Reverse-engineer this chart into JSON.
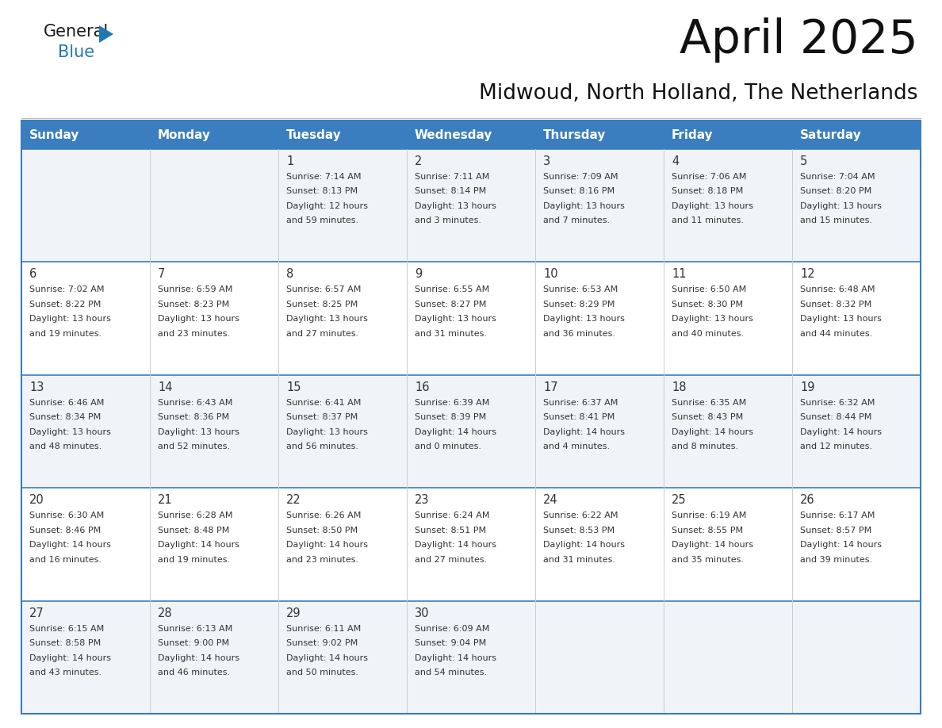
{
  "title": "April 2025",
  "subtitle": "Midwoud, North Holland, The Netherlands",
  "days_of_week": [
    "Sunday",
    "Monday",
    "Tuesday",
    "Wednesday",
    "Thursday",
    "Friday",
    "Saturday"
  ],
  "header_bg": "#3a7ebf",
  "header_text": "#ffffff",
  "cell_bg_light": "#f0f4f8",
  "cell_bg_white": "#ffffff",
  "border_color": "#3a7ebf",
  "row_line_color": "#3a7ebf",
  "col_line_color": "#cccccc",
  "text_color": "#333333",
  "logo_general_color": "#1a1a1a",
  "logo_blue_color": "#2278b5",
  "logo_triangle_color": "#2278b5",
  "weeks": [
    {
      "days": [
        {
          "date": "",
          "info": ""
        },
        {
          "date": "",
          "info": ""
        },
        {
          "date": "1",
          "info": "Sunrise: 7:14 AM\nSunset: 8:13 PM\nDaylight: 12 hours\nand 59 minutes."
        },
        {
          "date": "2",
          "info": "Sunrise: 7:11 AM\nSunset: 8:14 PM\nDaylight: 13 hours\nand 3 minutes."
        },
        {
          "date": "3",
          "info": "Sunrise: 7:09 AM\nSunset: 8:16 PM\nDaylight: 13 hours\nand 7 minutes."
        },
        {
          "date": "4",
          "info": "Sunrise: 7:06 AM\nSunset: 8:18 PM\nDaylight: 13 hours\nand 11 minutes."
        },
        {
          "date": "5",
          "info": "Sunrise: 7:04 AM\nSunset: 8:20 PM\nDaylight: 13 hours\nand 15 minutes."
        }
      ]
    },
    {
      "days": [
        {
          "date": "6",
          "info": "Sunrise: 7:02 AM\nSunset: 8:22 PM\nDaylight: 13 hours\nand 19 minutes."
        },
        {
          "date": "7",
          "info": "Sunrise: 6:59 AM\nSunset: 8:23 PM\nDaylight: 13 hours\nand 23 minutes."
        },
        {
          "date": "8",
          "info": "Sunrise: 6:57 AM\nSunset: 8:25 PM\nDaylight: 13 hours\nand 27 minutes."
        },
        {
          "date": "9",
          "info": "Sunrise: 6:55 AM\nSunset: 8:27 PM\nDaylight: 13 hours\nand 31 minutes."
        },
        {
          "date": "10",
          "info": "Sunrise: 6:53 AM\nSunset: 8:29 PM\nDaylight: 13 hours\nand 36 minutes."
        },
        {
          "date": "11",
          "info": "Sunrise: 6:50 AM\nSunset: 8:30 PM\nDaylight: 13 hours\nand 40 minutes."
        },
        {
          "date": "12",
          "info": "Sunrise: 6:48 AM\nSunset: 8:32 PM\nDaylight: 13 hours\nand 44 minutes."
        }
      ]
    },
    {
      "days": [
        {
          "date": "13",
          "info": "Sunrise: 6:46 AM\nSunset: 8:34 PM\nDaylight: 13 hours\nand 48 minutes."
        },
        {
          "date": "14",
          "info": "Sunrise: 6:43 AM\nSunset: 8:36 PM\nDaylight: 13 hours\nand 52 minutes."
        },
        {
          "date": "15",
          "info": "Sunrise: 6:41 AM\nSunset: 8:37 PM\nDaylight: 13 hours\nand 56 minutes."
        },
        {
          "date": "16",
          "info": "Sunrise: 6:39 AM\nSunset: 8:39 PM\nDaylight: 14 hours\nand 0 minutes."
        },
        {
          "date": "17",
          "info": "Sunrise: 6:37 AM\nSunset: 8:41 PM\nDaylight: 14 hours\nand 4 minutes."
        },
        {
          "date": "18",
          "info": "Sunrise: 6:35 AM\nSunset: 8:43 PM\nDaylight: 14 hours\nand 8 minutes."
        },
        {
          "date": "19",
          "info": "Sunrise: 6:32 AM\nSunset: 8:44 PM\nDaylight: 14 hours\nand 12 minutes."
        }
      ]
    },
    {
      "days": [
        {
          "date": "20",
          "info": "Sunrise: 6:30 AM\nSunset: 8:46 PM\nDaylight: 14 hours\nand 16 minutes."
        },
        {
          "date": "21",
          "info": "Sunrise: 6:28 AM\nSunset: 8:48 PM\nDaylight: 14 hours\nand 19 minutes."
        },
        {
          "date": "22",
          "info": "Sunrise: 6:26 AM\nSunset: 8:50 PM\nDaylight: 14 hours\nand 23 minutes."
        },
        {
          "date": "23",
          "info": "Sunrise: 6:24 AM\nSunset: 8:51 PM\nDaylight: 14 hours\nand 27 minutes."
        },
        {
          "date": "24",
          "info": "Sunrise: 6:22 AM\nSunset: 8:53 PM\nDaylight: 14 hours\nand 31 minutes."
        },
        {
          "date": "25",
          "info": "Sunrise: 6:19 AM\nSunset: 8:55 PM\nDaylight: 14 hours\nand 35 minutes."
        },
        {
          "date": "26",
          "info": "Sunrise: 6:17 AM\nSunset: 8:57 PM\nDaylight: 14 hours\nand 39 minutes."
        }
      ]
    },
    {
      "days": [
        {
          "date": "27",
          "info": "Sunrise: 6:15 AM\nSunset: 8:58 PM\nDaylight: 14 hours\nand 43 minutes."
        },
        {
          "date": "28",
          "info": "Sunrise: 6:13 AM\nSunset: 9:00 PM\nDaylight: 14 hours\nand 46 minutes."
        },
        {
          "date": "29",
          "info": "Sunrise: 6:11 AM\nSunset: 9:02 PM\nDaylight: 14 hours\nand 50 minutes."
        },
        {
          "date": "30",
          "info": "Sunrise: 6:09 AM\nSunset: 9:04 PM\nDaylight: 14 hours\nand 54 minutes."
        },
        {
          "date": "",
          "info": ""
        },
        {
          "date": "",
          "info": ""
        },
        {
          "date": "",
          "info": ""
        }
      ]
    }
  ]
}
